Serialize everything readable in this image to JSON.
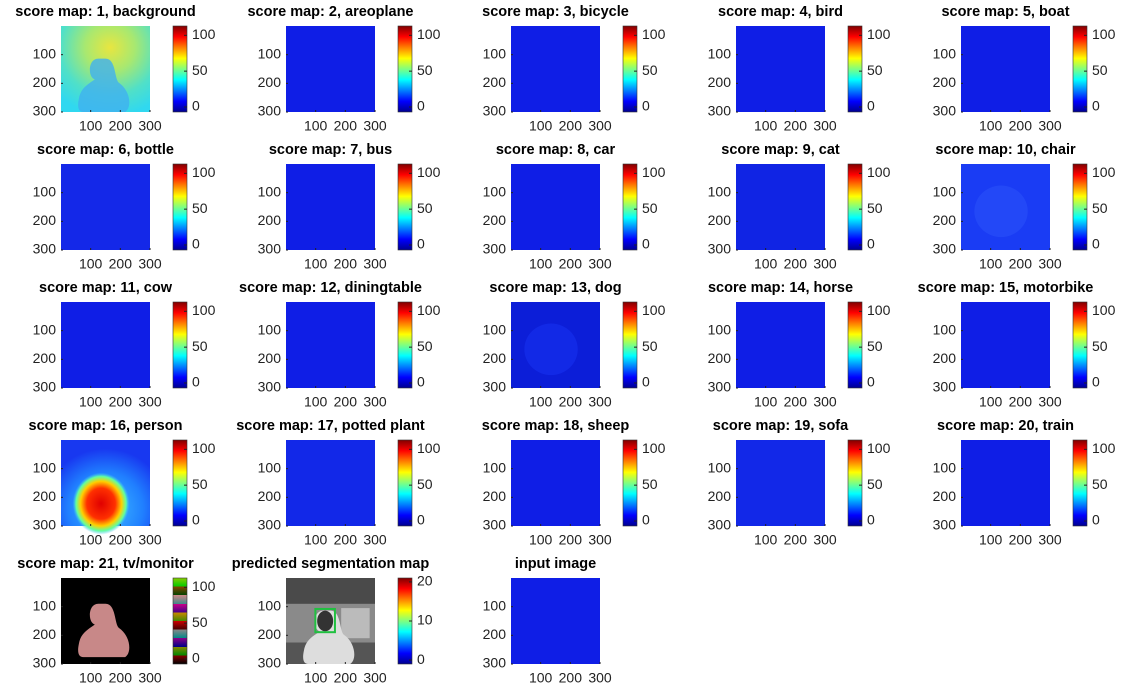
{
  "panels": [
    {
      "title": "score map: 1, background",
      "xticks": [
        100,
        200,
        300
      ],
      "yticks": [
        100,
        200,
        300
      ],
      "xlim": [
        0,
        300
      ],
      "ylim": [
        0,
        300
      ],
      "clim": [
        -7,
        113
      ],
      "cticks": [
        0,
        50,
        100
      ]
    },
    {
      "title": "score map: 2, areoplane",
      "xticks": [
        100,
        200,
        300
      ],
      "yticks": [
        100,
        200,
        300
      ],
      "xlim": [
        0,
        300
      ],
      "ylim": [
        0,
        300
      ],
      "clim": [
        -7,
        113
      ],
      "cticks": [
        0,
        50,
        100
      ]
    },
    {
      "title": "score map: 3, bicycle",
      "xticks": [
        100,
        200,
        300
      ],
      "yticks": [
        100,
        200,
        300
      ],
      "xlim": [
        0,
        300
      ],
      "ylim": [
        0,
        300
      ],
      "clim": [
        -7,
        113
      ],
      "cticks": [
        0,
        50,
        100
      ]
    },
    {
      "title": "score map: 4, bird",
      "xticks": [
        100,
        200,
        300
      ],
      "yticks": [
        100,
        200,
        300
      ],
      "xlim": [
        0,
        300
      ],
      "ylim": [
        0,
        300
      ],
      "clim": [
        -7,
        113
      ],
      "cticks": [
        0,
        50,
        100
      ]
    },
    {
      "title": "score map: 5, boat",
      "xticks": [
        100,
        200,
        300
      ],
      "yticks": [
        100,
        200,
        300
      ],
      "xlim": [
        0,
        300
      ],
      "ylim": [
        0,
        300
      ],
      "clim": [
        -7,
        113
      ],
      "cticks": [
        0,
        50,
        100
      ]
    },
    {
      "title": "score map: 6, bottle",
      "xticks": [
        100,
        200,
        300
      ],
      "yticks": [
        100,
        200,
        300
      ],
      "xlim": [
        0,
        300
      ],
      "ylim": [
        0,
        300
      ],
      "clim": [
        -7,
        113
      ],
      "cticks": [
        0,
        50,
        100
      ]
    },
    {
      "title": "score map: 7, bus",
      "xticks": [
        100,
        200,
        300
      ],
      "yticks": [
        100,
        200,
        300
      ],
      "xlim": [
        0,
        300
      ],
      "ylim": [
        0,
        300
      ],
      "clim": [
        -7,
        113
      ],
      "cticks": [
        0,
        50,
        100
      ]
    },
    {
      "title": "score map: 8, car",
      "xticks": [
        100,
        200,
        300
      ],
      "yticks": [
        100,
        200,
        300
      ],
      "xlim": [
        0,
        300
      ],
      "ylim": [
        0,
        300
      ],
      "clim": [
        -7,
        113
      ],
      "cticks": [
        0,
        50,
        100
      ]
    },
    {
      "title": "score map: 9, cat",
      "xticks": [
        100,
        200,
        300
      ],
      "yticks": [
        100,
        200,
        300
      ],
      "xlim": [
        0,
        300
      ],
      "ylim": [
        0,
        300
      ],
      "clim": [
        -7,
        113
      ],
      "cticks": [
        0,
        50,
        100
      ]
    },
    {
      "title": "score map: 10, chair",
      "xticks": [
        100,
        200,
        300
      ],
      "yticks": [
        100,
        200,
        300
      ],
      "xlim": [
        0,
        300
      ],
      "ylim": [
        0,
        300
      ],
      "clim": [
        -7,
        113
      ],
      "cticks": [
        0,
        50,
        100
      ]
    },
    {
      "title": "score map: 11, cow",
      "xticks": [
        100,
        200,
        300
      ],
      "yticks": [
        100,
        200,
        300
      ],
      "xlim": [
        0,
        300
      ],
      "ylim": [
        0,
        300
      ],
      "clim": [
        -7,
        113
      ],
      "cticks": [
        0,
        50,
        100
      ]
    },
    {
      "title": "score map: 12, diningtable",
      "xticks": [
        100,
        200,
        300
      ],
      "yticks": [
        100,
        200,
        300
      ],
      "xlim": [
        0,
        300
      ],
      "ylim": [
        0,
        300
      ],
      "clim": [
        -7,
        113
      ],
      "cticks": [
        0,
        50,
        100
      ]
    },
    {
      "title": "score map: 13, dog",
      "xticks": [
        100,
        200,
        300
      ],
      "yticks": [
        100,
        200,
        300
      ],
      "xlim": [
        0,
        300
      ],
      "ylim": [
        0,
        300
      ],
      "clim": [
        -7,
        113
      ],
      "cticks": [
        0,
        50,
        100
      ]
    },
    {
      "title": "score map: 14, horse",
      "xticks": [
        100,
        200,
        300
      ],
      "yticks": [
        100,
        200,
        300
      ],
      "xlim": [
        0,
        300
      ],
      "ylim": [
        0,
        300
      ],
      "clim": [
        -7,
        113
      ],
      "cticks": [
        0,
        50,
        100
      ]
    },
    {
      "title": "score map: 15, motorbike",
      "xticks": [
        100,
        200,
        300
      ],
      "yticks": [
        100,
        200,
        300
      ],
      "xlim": [
        0,
        300
      ],
      "ylim": [
        0,
        300
      ],
      "clim": [
        -7,
        113
      ],
      "cticks": [
        0,
        50,
        100
      ]
    },
    {
      "title": "score map: 16, person",
      "xticks": [
        100,
        200,
        300
      ],
      "yticks": [
        100,
        200,
        300
      ],
      "xlim": [
        0,
        300
      ],
      "ylim": [
        0,
        300
      ],
      "clim": [
        -7,
        113
      ],
      "cticks": [
        0,
        50,
        100
      ]
    },
    {
      "title": "score map: 17, potted plant",
      "xticks": [
        100,
        200,
        300
      ],
      "yticks": [
        100,
        200,
        300
      ],
      "xlim": [
        0,
        300
      ],
      "ylim": [
        0,
        300
      ],
      "clim": [
        -7,
        113
      ],
      "cticks": [
        0,
        50,
        100
      ]
    },
    {
      "title": "score map: 18, sheep",
      "xticks": [
        100,
        200,
        300
      ],
      "yticks": [
        100,
        200,
        300
      ],
      "xlim": [
        0,
        300
      ],
      "ylim": [
        0,
        300
      ],
      "clim": [
        -7,
        113
      ],
      "cticks": [
        0,
        50,
        100
      ]
    },
    {
      "title": "score map: 19, sofa",
      "xticks": [
        100,
        200,
        300
      ],
      "yticks": [
        100,
        200,
        300
      ],
      "xlim": [
        0,
        300
      ],
      "ylim": [
        0,
        300
      ],
      "clim": [
        -7,
        113
      ],
      "cticks": [
        0,
        50,
        100
      ]
    },
    {
      "title": "score map: 20, train",
      "xticks": [
        100,
        200,
        300
      ],
      "yticks": [
        100,
        200,
        300
      ],
      "xlim": [
        0,
        300
      ],
      "ylim": [
        0,
        300
      ],
      "clim": [
        -7,
        113
      ],
      "cticks": [
        0,
        50,
        100
      ]
    },
    {
      "title": "score map: 21, tv/monitor",
      "xticks": [
        100,
        200,
        300
      ],
      "yticks": [
        100,
        200,
        300
      ],
      "xlim": [
        0,
        300
      ],
      "ylim": [
        0,
        300
      ],
      "clim": [
        -7,
        113
      ],
      "cticks": [
        0,
        50,
        100
      ]
    },
    {
      "title": "predicted segmentation map",
      "xticks": [
        100,
        200,
        300
      ],
      "yticks": [
        100,
        200,
        300
      ],
      "xlim": [
        0,
        300
      ],
      "ylim": [
        0,
        300
      ],
      "clim": [
        -1,
        21
      ],
      "cticks": [
        0,
        10,
        20
      ]
    },
    {
      "title": "input image",
      "xticks": [
        100,
        200,
        300
      ],
      "yticks": [
        100,
        200,
        300
      ],
      "xlim": [
        0,
        300
      ],
      "ylim": [
        0,
        300
      ]
    }
  ]
}
